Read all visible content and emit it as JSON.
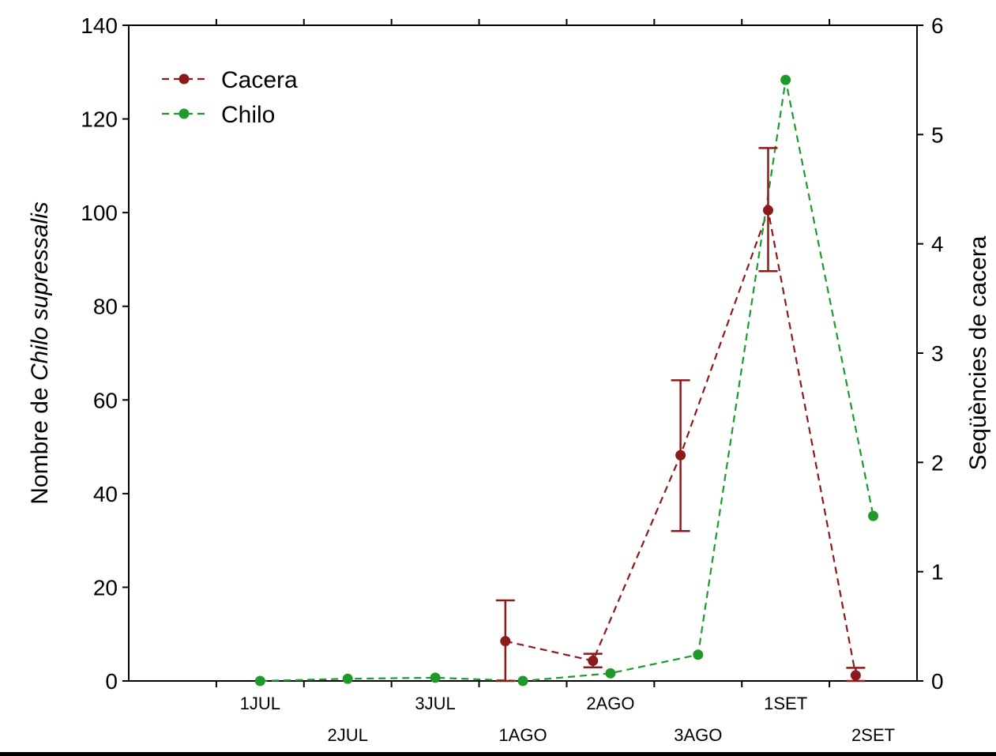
{
  "chart_data": {
    "type": "line",
    "ylabel_left_prefix": "Nombre de ",
    "ylabel_left_italic": "Chilo supressalis",
    "ylabel_right": "Seqüències de cacera",
    "y_left": {
      "min": 0,
      "max": 140,
      "ticks": [
        "0",
        "20",
        "40",
        "60",
        "80",
        "100",
        "120",
        "140"
      ]
    },
    "y_right": {
      "min": 0,
      "max": 6,
      "ticks": [
        "0",
        "1",
        "2",
        "3",
        "4",
        "5",
        "6"
      ]
    },
    "x_range": [
      0,
      9
    ],
    "categories": [
      {
        "label": "1JUL",
        "x": 1.5,
        "row": 1
      },
      {
        "label": "2JUL",
        "x": 2.5,
        "row": 2
      },
      {
        "label": "3JUL",
        "x": 3.5,
        "row": 1
      },
      {
        "label": "1AGO",
        "x": 4.5,
        "row": 2
      },
      {
        "label": "2AGO",
        "x": 5.5,
        "row": 1
      },
      {
        "label": "3AGO",
        "x": 6.5,
        "row": 2
      },
      {
        "label": "1SET",
        "x": 7.5,
        "row": 1
      },
      {
        "label": "2SET",
        "x": 8.5,
        "row": 2
      }
    ],
    "series": [
      {
        "name": "Cacera",
        "color": "#8b1a1a",
        "axis": "left",
        "points": [
          {
            "x": 4.3,
            "y": 8.5,
            "low": 0,
            "high": 17.2
          },
          {
            "x": 5.3,
            "y": 4.3,
            "low": 2.9,
            "high": 5.8
          },
          {
            "x": 6.3,
            "y": 48.2,
            "low": 32.0,
            "high": 64.2
          },
          {
            "x": 7.3,
            "y": 100.5,
            "low": 87.5,
            "high": 113.8
          },
          {
            "x": 8.3,
            "y": 1.2,
            "low": 0,
            "high": 2.8
          }
        ]
      },
      {
        "name": "Chilo",
        "color": "#1f9a2a",
        "axis": "right",
        "points": [
          {
            "x": 1.5,
            "y": 0
          },
          {
            "x": 2.5,
            "y": 0.02
          },
          {
            "x": 3.5,
            "y": 0.03
          },
          {
            "x": 4.5,
            "y": 0
          },
          {
            "x": 5.5,
            "y": 0.07
          },
          {
            "x": 6.5,
            "y": 0.24
          },
          {
            "x": 7.5,
            "y": 5.5
          },
          {
            "x": 8.5,
            "y": 1.51
          }
        ]
      }
    ],
    "legend_position": "top-left",
    "grid": false
  }
}
